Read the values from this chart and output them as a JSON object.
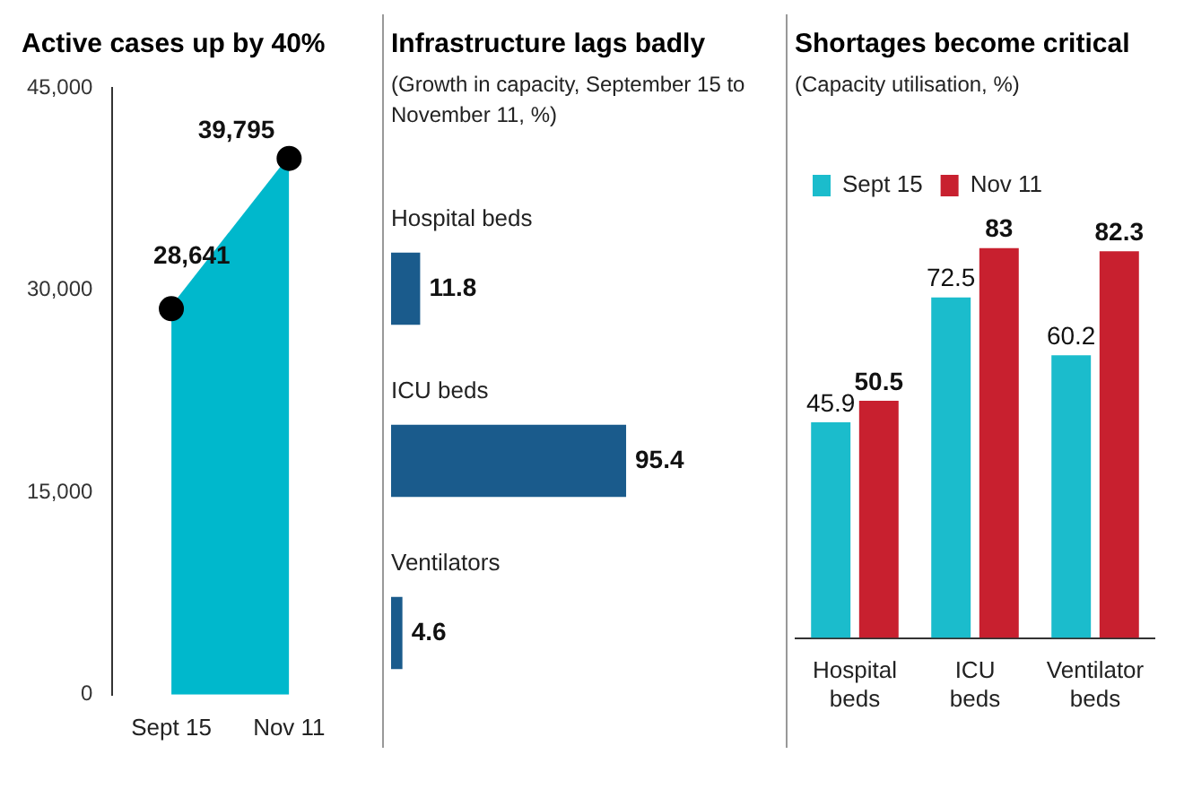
{
  "chart_data": [
    {
      "type": "area",
      "title": "Active cases up by 40%",
      "categories": [
        "Sept 15",
        "Nov 11"
      ],
      "series": [
        {
          "color": "#00b8cc",
          "values": [
            28641,
            39795
          ],
          "value_labels": [
            "28,641",
            "39,795"
          ]
        }
      ],
      "ylim": [
        0,
        45000
      ],
      "yticks": [
        {
          "value": 0,
          "label": "0"
        },
        {
          "value": 15000,
          "label": "15,000"
        },
        {
          "value": 30000,
          "label": "30,000"
        },
        {
          "value": 45000,
          "label": "45,000"
        }
      ],
      "marker": "circle",
      "grid": false,
      "legend": false
    },
    {
      "type": "bar",
      "orientation": "horizontal",
      "title": "Infrastructure lags badly",
      "subtitle": "(Growth in capacity, September 15 to November 11, %)",
      "categories": [
        "Hospital beds",
        "ICU beds",
        "Ventilators"
      ],
      "series": [
        {
          "color": "#1a5b8c",
          "values": [
            11.8,
            95.4,
            4.6
          ]
        }
      ],
      "data_labels": true,
      "legend": false,
      "tick_labels": false
    },
    {
      "type": "bar",
      "title": "Shortages become critical",
      "subtitle": "(Capacity utilisation, %)",
      "categories": [
        "Hospital beds",
        "ICU beds",
        "Ventilator beds"
      ],
      "series": [
        {
          "name": "Sept 15",
          "color": "#1bbccc",
          "values": [
            45.9,
            72.5,
            60.2
          ]
        },
        {
          "name": "Nov 11",
          "color": "#c8202f",
          "values": [
            50.5,
            83,
            82.3
          ]
        }
      ],
      "data_labels": true,
      "legend": "top left",
      "tick_labels": "x"
    }
  ]
}
